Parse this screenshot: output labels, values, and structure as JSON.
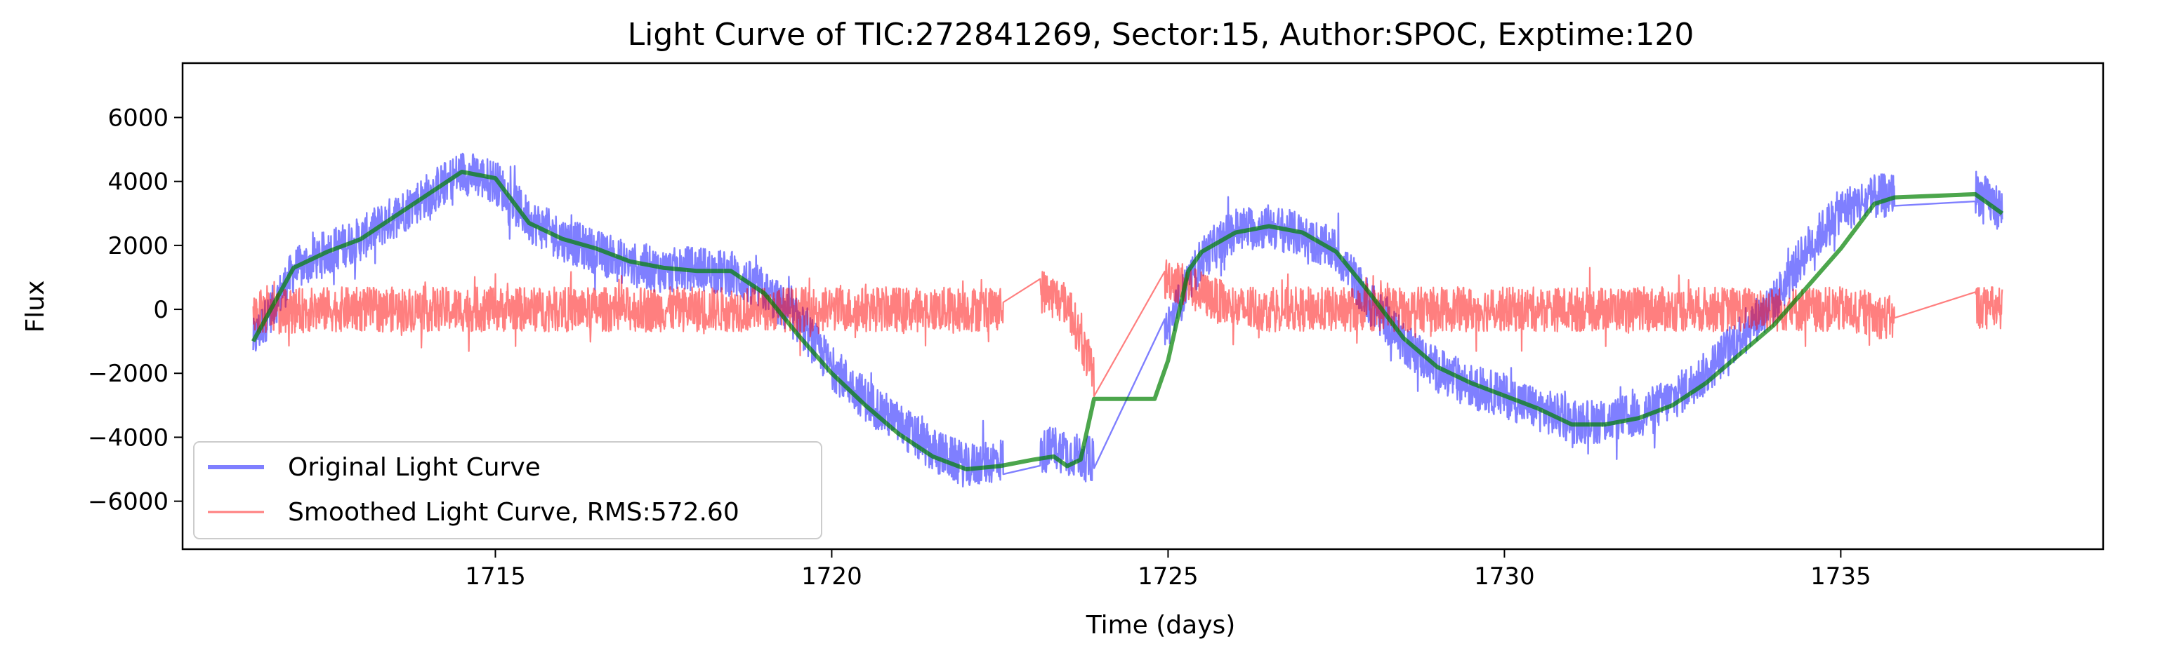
{
  "chart_data": {
    "type": "line",
    "title": "Light Curve of TIC:272841269, Sector:15, Author:SPOC, Exptime:120",
    "xlabel": "Time (days)",
    "ylabel": "Flux",
    "xlim": [
      1710.35,
      1738.9
    ],
    "ylim": [
      -7500,
      7700
    ],
    "xticks": [
      1715,
      1720,
      1725,
      1730,
      1735
    ],
    "yticks": [
      -6000,
      -4000,
      -2000,
      0,
      2000,
      4000,
      6000
    ],
    "grid": false,
    "legend_position": "lower-left",
    "colors": {
      "original": "#0000ff",
      "smoothed": "#ff0000",
      "trend": "#008000"
    },
    "series": [
      {
        "name": "Original Light Curve",
        "key": "original",
        "x": [
          1711.4,
          1712.0,
          1712.5,
          1713.0,
          1713.5,
          1714.0,
          1714.5,
          1715.0,
          1715.5,
          1716.0,
          1716.5,
          1717.0,
          1717.5,
          1718.0,
          1718.5,
          1719.0,
          1719.5,
          1720.0,
          1720.5,
          1721.0,
          1721.5,
          1722.0,
          1722.5,
          1723.1,
          1723.3,
          1723.5,
          1723.9,
          1724.5,
          1725.0,
          1725.5,
          1726.0,
          1726.5,
          1727.0,
          1727.5,
          1728.0,
          1728.5,
          1729.0,
          1729.5,
          1730.0,
          1730.5,
          1731.0,
          1731.5,
          1732.0,
          1732.5,
          1733.0,
          1733.5,
          1734.0,
          1734.5,
          1735.0,
          1735.5,
          1735.8,
          1737.0,
          1737.4
        ],
        "y": [
          -1000,
          1200,
          1800,
          2200,
          2900,
          3600,
          4300,
          4000,
          2800,
          2200,
          1800,
          1400,
          1200,
          1300,
          1100,
          600,
          -400,
          -1800,
          -2800,
          -3600,
          -4400,
          -4900,
          -4700,
          -4500,
          -4300,
          -4500,
          -4700,
          -2700,
          -500,
          1600,
          2500,
          2600,
          2300,
          1800,
          200,
          -1000,
          -1900,
          -2400,
          -2700,
          -3100,
          -3500,
          -3500,
          -3300,
          -2800,
          -2000,
          -800,
          200,
          1900,
          3100,
          3500,
          3600,
          3700,
          3100
        ],
        "noise_amplitude": 700
      },
      {
        "name": "Smoothed Light Curve, RMS:572.60",
        "key": "smoothed",
        "x": [
          1711.4,
          1712.5,
          1714.0,
          1716.0,
          1718.0,
          1720.0,
          1721.5,
          1722.5,
          1723.1,
          1723.5,
          1723.9,
          1725.0,
          1726.0,
          1728.0,
          1730.0,
          1732.0,
          1733.5,
          1735.0,
          1735.8,
          1737.0,
          1737.4
        ],
        "y": [
          -100,
          0,
          0,
          0,
          0,
          0,
          0,
          0,
          600,
          200,
          -2100,
          1000,
          0,
          0,
          0,
          0,
          0,
          0,
          -300,
          100,
          0
        ],
        "noise_amplitude": 700
      },
      {
        "name": "",
        "key": "trend",
        "x": [
          1711.4,
          1712.0,
          1712.5,
          1713.0,
          1713.5,
          1714.0,
          1714.5,
          1715.0,
          1715.5,
          1716.0,
          1716.5,
          1717.0,
          1717.5,
          1718.0,
          1718.5,
          1719.0,
          1719.5,
          1720.0,
          1720.5,
          1721.0,
          1721.5,
          1722.0,
          1722.5,
          1723.0,
          1723.3,
          1723.5,
          1723.7,
          1723.9,
          1724.2,
          1724.8,
          1725.0,
          1725.3,
          1725.5,
          1726.0,
          1726.5,
          1727.0,
          1727.5,
          1728.0,
          1728.5,
          1729.0,
          1729.5,
          1730.0,
          1730.5,
          1731.0,
          1731.5,
          1732.0,
          1732.5,
          1733.0,
          1733.5,
          1734.0,
          1734.5,
          1735.0,
          1735.5,
          1735.8,
          1737.0,
          1737.4
        ],
        "y": [
          -1000,
          1300,
          1800,
          2200,
          2900,
          3600,
          4300,
          4100,
          2700,
          2200,
          1900,
          1500,
          1300,
          1200,
          1200,
          500,
          -800,
          -2000,
          -3000,
          -3900,
          -4600,
          -5000,
          -4900,
          -4700,
          -4600,
          -4900,
          -4700,
          -2800,
          -2800,
          -2800,
          -1600,
          1200,
          1800,
          2400,
          2600,
          2400,
          1800,
          500,
          -900,
          -1800,
          -2300,
          -2700,
          -3100,
          -3600,
          -3600,
          -3400,
          -3000,
          -2300,
          -1400,
          -500,
          700,
          1900,
          3300,
          3500,
          3600,
          3000
        ]
      }
    ]
  }
}
